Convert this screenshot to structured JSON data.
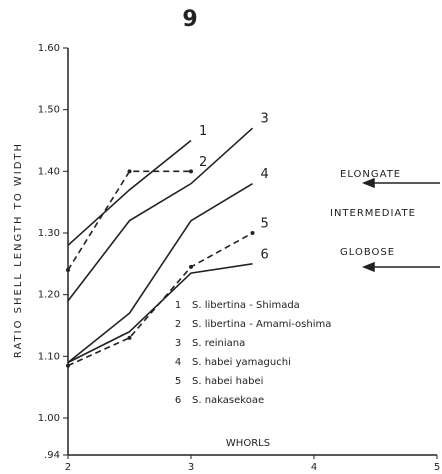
{
  "chart_data": {
    "type": "line",
    "title": "9",
    "x_label": "WHORLS",
    "y_label": "RATIO SHELL LENGTH TO WIDTH",
    "xlim": [
      2,
      5
    ],
    "xticks": [
      2,
      3,
      4,
      5
    ],
    "ylim": [
      0.94,
      1.6
    ],
    "yticks": [
      {
        "value": 0.94,
        "label": ".94"
      },
      {
        "value": 1.0,
        "label": "1.00"
      },
      {
        "value": 1.1,
        "label": "1.10"
      },
      {
        "value": 1.2,
        "label": "1.20"
      },
      {
        "value": 1.3,
        "label": "1.30"
      },
      {
        "value": 1.4,
        "label": "1.40"
      },
      {
        "value": 1.5,
        "label": "1.50"
      },
      {
        "value": 1.6,
        "label": "1.60"
      }
    ],
    "series": [
      {
        "label": "1",
        "name": "S. libertina - Shimada",
        "color": "#222",
        "dashed": false,
        "x": [
          2,
          2.5,
          3
        ],
        "values": [
          1.28,
          1.37,
          1.45
        ]
      },
      {
        "label": "2",
        "name": "S. libertina - Amami-oshima",
        "color": "#222",
        "dashed": true,
        "x": [
          2,
          2.5,
          3
        ],
        "values": [
          1.24,
          1.4,
          1.4
        ]
      },
      {
        "label": "3",
        "name": "S. reiniana",
        "color": "#222",
        "dashed": false,
        "x": [
          2,
          2.5,
          3,
          3.5
        ],
        "values": [
          1.19,
          1.32,
          1.38,
          1.47
        ]
      },
      {
        "label": "4",
        "name": "S. habei yamaguchi",
        "color": "#222",
        "dashed": false,
        "x": [
          2,
          2.5,
          3,
          3.5
        ],
        "values": [
          1.09,
          1.17,
          1.32,
          1.38
        ]
      },
      {
        "label": "5",
        "name": "S. habei habei",
        "color": "#222",
        "dashed": true,
        "x": [
          2,
          2.5,
          3,
          3.5
        ],
        "values": [
          1.085,
          1.13,
          1.245,
          1.3
        ]
      },
      {
        "label": "6",
        "name": "S. nakasekoae",
        "color": "#222",
        "dashed": false,
        "x": [
          2,
          2.5,
          3,
          3.5
        ],
        "values": [
          1.09,
          1.14,
          1.235,
          1.25
        ]
      }
    ],
    "annotations": [
      "ELONGATE",
      "INTERMEDIATE",
      "GLOBOSE"
    ]
  }
}
